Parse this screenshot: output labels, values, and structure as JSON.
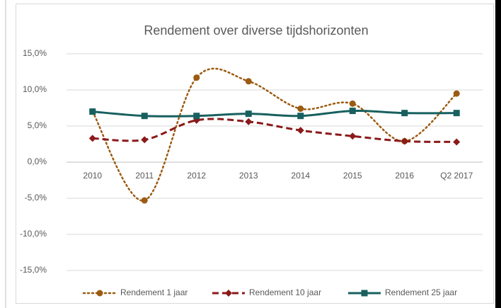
{
  "chart_data": {
    "type": "line",
    "title": "Rendement over diverse tijdshorizonten",
    "categories": [
      "2010",
      "2011",
      "2012",
      "2013",
      "2014",
      "2015",
      "2016",
      "Q2 2017"
    ],
    "series": [
      {
        "name": "Rendement 1 jaar",
        "color": "#9c5b12",
        "marker": "circle",
        "line_style": "dotted",
        "values": [
          7.0,
          -5.3,
          11.7,
          11.2,
          7.4,
          8.1,
          2.9,
          9.5
        ]
      },
      {
        "name": "Rendement 10 jaar",
        "color": "#8b1a1a",
        "marker": "diamond",
        "line_style": "dashed",
        "values": [
          3.3,
          3.1,
          5.8,
          5.6,
          4.4,
          3.6,
          2.9,
          2.8
        ]
      },
      {
        "name": "Rendement 25 jaar",
        "color": "#17605f",
        "marker": "square",
        "line_style": "solid",
        "values": [
          7.0,
          6.4,
          6.4,
          6.7,
          6.4,
          7.1,
          6.8,
          6.8
        ]
      }
    ],
    "ylim": [
      -15,
      15
    ],
    "yticks": [
      {
        "value": -15,
        "label": "-15,0%"
      },
      {
        "value": -10,
        "label": "-10,0%"
      },
      {
        "value": -5,
        "label": "-5,0%"
      },
      {
        "value": 0,
        "label": "0,0%"
      },
      {
        "value": 5,
        "label": "5,0%"
      },
      {
        "value": 10,
        "label": "10,0%"
      },
      {
        "value": 15,
        "label": "15,0%"
      }
    ],
    "grid": true,
    "smooth": true,
    "legend": "bottom"
  }
}
